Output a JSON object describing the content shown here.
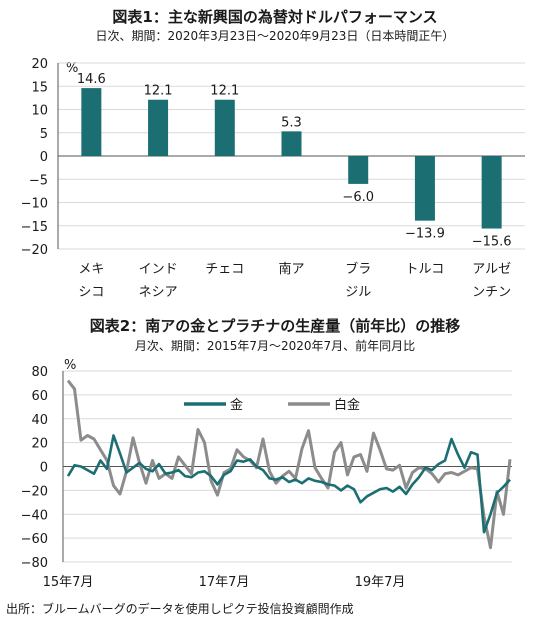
{
  "chart_data": [
    {
      "type": "bar",
      "title": "図表1：主な新興国の為替対ドルパフォーマンス",
      "subtitle": "日次、期間：2020年3月23日～2020年9月23日（日本時間正午）",
      "unit": "%",
      "categories": [
        [
          "メキ",
          "シコ"
        ],
        [
          "インド",
          "ネシア"
        ],
        [
          "チェコ",
          ""
        ],
        [
          "南ア",
          ""
        ],
        [
          "ブラ",
          "ジル"
        ],
        [
          "トルコ",
          ""
        ],
        [
          "アルゼ",
          "ンチン"
        ]
      ],
      "values": [
        14.6,
        12.1,
        12.1,
        5.3,
        -6.0,
        -13.9,
        -15.6
      ],
      "value_labels": [
        "14.6",
        "12.1",
        "12.1",
        "5.3",
        "−6.0",
        "−13.9",
        "−15.6"
      ],
      "ylim": [
        -20,
        20
      ],
      "yticks": [
        20,
        15,
        10,
        5,
        0,
        -5,
        -10,
        -15,
        -20
      ],
      "ytick_labels": [
        "20",
        "15",
        "10",
        "5",
        "0",
        "−5",
        "−10",
        "−15",
        "−20"
      ],
      "grid": true,
      "color": "#1b6e72"
    },
    {
      "type": "line",
      "title": "図表2：南アの金とプラチナの生産量（前年比）の推移",
      "subtitle": "月次、期間：2015年7月～2020年7月、前年同月比",
      "unit": "%",
      "x_start": "2015-07",
      "x_end": "2020-07",
      "xtick_labels": [
        "15年7月",
        "17年7月",
        "19年7月"
      ],
      "ylim": [
        -80,
        80
      ],
      "yticks": [
        80,
        60,
        40,
        20,
        0,
        -20,
        -40,
        -60,
        -80
      ],
      "ytick_labels": [
        "80",
        "60",
        "40",
        "20",
        "0",
        "−20",
        "−40",
        "−60",
        "−80"
      ],
      "grid": true,
      "legend": "top-center",
      "series": [
        {
          "name": "金",
          "color": "#1b6e72",
          "values": [
            -8,
            1,
            0,
            -3,
            -6,
            5,
            -2,
            26,
            11,
            -5,
            -1,
            3,
            -2,
            -4,
            2,
            -6,
            -5,
            -3,
            -8,
            -9,
            -5,
            -4,
            -8,
            -15,
            -7,
            -4,
            5,
            4,
            6,
            0,
            -3,
            -10,
            -11,
            -9,
            -13,
            -11,
            -14,
            -10,
            -12,
            -13,
            -15,
            -16,
            -20,
            -16,
            -19,
            -30,
            -25,
            -22,
            -19,
            -18,
            -21,
            -17,
            -23,
            -15,
            -9,
            -1,
            -3,
            2,
            5,
            23,
            10,
            -1,
            12,
            10,
            -55,
            -40,
            -22,
            -17,
            -11
          ]
        },
        {
          "name": "白金",
          "color": "#8c8c8c",
          "values": [
            72,
            65,
            22,
            26,
            23,
            14,
            5,
            -16,
            -23,
            -4,
            24,
            3,
            -14,
            5,
            -10,
            -6,
            -10,
            8,
            1,
            -6,
            31,
            20,
            -12,
            -24,
            -5,
            -2,
            14,
            8,
            5,
            -1,
            23,
            -4,
            -14,
            -8,
            -4,
            -10,
            15,
            30,
            -1,
            -10,
            -18,
            12,
            20,
            -7,
            8,
            10,
            -4,
            28,
            14,
            -2,
            -3,
            1,
            -18,
            -5,
            -1,
            -2,
            -6,
            -13,
            -6,
            -5,
            -7,
            -4,
            -1,
            -2,
            -42,
            -68,
            -21,
            -40,
            6
          ]
        }
      ]
    }
  ],
  "source": "出所：ブルームバーグのデータを使用しピクテ投信投資顧問作成"
}
